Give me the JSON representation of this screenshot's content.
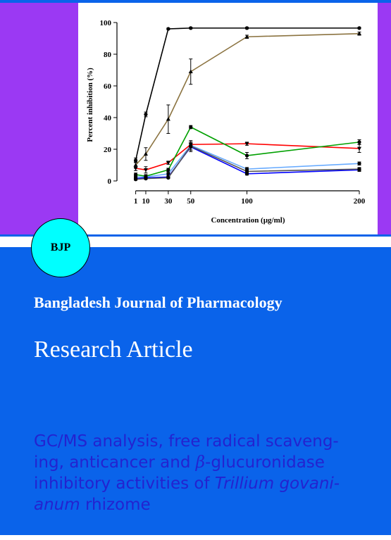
{
  "journal": {
    "abbreviation": "BJP",
    "name": "Bangladesh Journal of Pharmacology",
    "article_type": "Research Article"
  },
  "article": {
    "title_lines": [
      [
        "GC/MS analysis, free radical scaveng-"
      ],
      [
        "ing, anticancer and ",
        "β",
        "-glucuronidase"
      ],
      [
        "inhibitory activities of ",
        "Trillium govani-"
      ],
      [
        "anum",
        " rhizome"
      ]
    ]
  },
  "colors": {
    "panel_blue": "#0a63ea",
    "side_purple": "#9b39f3",
    "badge_cyan": "#00ffff",
    "title_text": "#2323d0"
  },
  "chart_data": {
    "type": "line",
    "xlabel": "Concentration (µg/ml)",
    "ylabel": "Percent inhibition (%)",
    "x": [
      1,
      10,
      30,
      50,
      100,
      200
    ],
    "xticks": [
      "1",
      "10",
      "30",
      "50",
      "100",
      "200"
    ],
    "yticks": [
      "0",
      "20",
      "40",
      "60",
      "80",
      "100"
    ],
    "ylim": [
      0,
      100
    ],
    "grid": false,
    "series": [
      {
        "color": "#000000",
        "marker": "circle",
        "values": [
          13,
          42,
          96,
          96.5,
          96.5,
          96.5
        ],
        "err": [
          1.5,
          1.5,
          0.5,
          0.5,
          0.5,
          0.5
        ]
      },
      {
        "color": "#8b7340",
        "marker": "triangle-up",
        "values": [
          10,
          17,
          39,
          69,
          91,
          93
        ],
        "err": [
          2,
          4,
          9,
          8,
          1,
          1
        ]
      },
      {
        "color": "#ff0000",
        "marker": "triangle-down",
        "values": [
          8,
          7,
          11.5,
          23,
          23.5,
          20.5
        ],
        "err": [
          1.5,
          2,
          1,
          1.5,
          1,
          2.5
        ]
      },
      {
        "color": "#00a000",
        "marker": "circle",
        "values": [
          4,
          3,
          7,
          34,
          16,
          24.5
        ],
        "err": [
          1,
          1,
          1,
          1,
          2,
          1.5
        ]
      },
      {
        "color": "#66aaff",
        "marker": "circle",
        "values": [
          2.5,
          2.5,
          4.5,
          22.5,
          7.5,
          11
        ],
        "err": [
          0.8,
          0.8,
          1,
          3,
          1,
          1
        ]
      },
      {
        "color": "#0000ff",
        "marker": "circle",
        "values": [
          1.5,
          2,
          2.5,
          21.5,
          4.5,
          7
        ],
        "err": [
          0.5,
          0.5,
          0.5,
          3,
          0.8,
          1
        ]
      },
      {
        "color": "#555555",
        "marker": "circle",
        "values": [
          1,
          1.5,
          2,
          22,
          6,
          7.5
        ],
        "err": [
          0.5,
          0.5,
          0.5,
          2.5,
          0.8,
          1
        ]
      }
    ]
  }
}
